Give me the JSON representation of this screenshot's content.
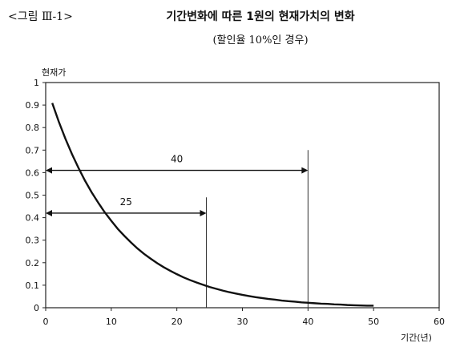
{
  "figure": {
    "label": "<그림 Ⅲ-1>",
    "title": "기간변화에 따른 1원의 현재가치의 변화",
    "subtitle": "(할인율 10%인 경우)"
  },
  "chart_data": {
    "type": "line",
    "title": "기간변화에 따른 1원의 현재가치의 변화",
    "subtitle": "(할인율 10%인 경우)",
    "xlabel": "기간(년)",
    "ylabel": "현재가",
    "xlim": [
      0,
      60
    ],
    "ylim": [
      0,
      1
    ],
    "xticks": [
      "0",
      "10",
      "20",
      "30",
      "40",
      "50",
      "60"
    ],
    "yticks": [
      "0",
      "0.1",
      "0.2",
      "0.3",
      "0.4",
      "0.5",
      "0.6",
      "0.7",
      "0.8",
      "0.9",
      "1"
    ],
    "grid": false,
    "series": [
      {
        "x": [
          1,
          2,
          3,
          4,
          5,
          6,
          7,
          8,
          9,
          10,
          11,
          12,
          13,
          14,
          15,
          16,
          17,
          18,
          19,
          20,
          21,
          22,
          23,
          24,
          25,
          26,
          27,
          28,
          29,
          30,
          31,
          32,
          33,
          34,
          35,
          36,
          37,
          38,
          39,
          40,
          41,
          42,
          43,
          44,
          45,
          46,
          47,
          48,
          49,
          50
        ],
        "y": [
          0.909,
          0.826,
          0.751,
          0.683,
          0.621,
          0.564,
          0.513,
          0.467,
          0.424,
          0.386,
          0.35,
          0.319,
          0.29,
          0.263,
          0.239,
          0.218,
          0.198,
          0.18,
          0.164,
          0.149,
          0.135,
          0.123,
          0.112,
          0.102,
          0.092,
          0.084,
          0.076,
          0.069,
          0.063,
          0.057,
          0.052,
          0.047,
          0.043,
          0.039,
          0.036,
          0.032,
          0.029,
          0.027,
          0.024,
          0.022,
          0.02,
          0.018,
          0.017,
          0.015,
          0.014,
          0.012,
          0.011,
          0.01,
          0.009,
          0.009
        ]
      }
    ],
    "annotations": [
      {
        "label": "40",
        "arrow_y": 0.61,
        "x_start": 0,
        "x_end": 40,
        "vline_x": 40,
        "vline_top": 0.7
      },
      {
        "label": "25",
        "arrow_y": 0.42,
        "x_start": 0,
        "x_end": 24.5,
        "vline_x": 24.5,
        "vline_top": 0.49
      }
    ]
  }
}
